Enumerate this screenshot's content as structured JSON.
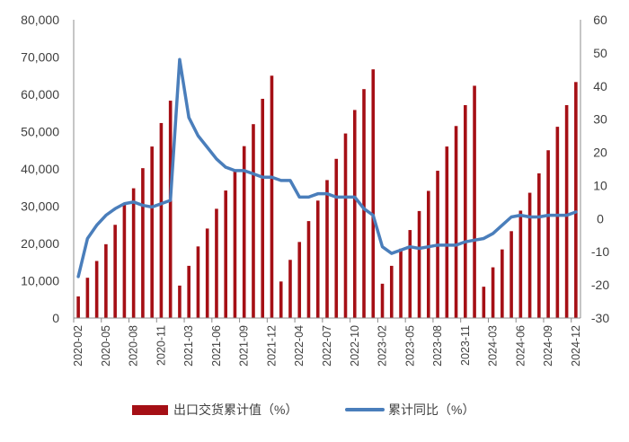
{
  "chart_data": {
    "type": "bar+line",
    "title": "",
    "colors": {
      "bar": "#A50F15",
      "line": "#4A7EBB",
      "axis": "#8C8C8C",
      "text": "#404040"
    },
    "y_left": {
      "ylim": [
        0,
        80000
      ],
      "ticks": [
        "0",
        "10,000",
        "20,000",
        "30,000",
        "40,000",
        "50,000",
        "60,000",
        "70,000",
        "80,000"
      ]
    },
    "y_right": {
      "ylim": [
        -30,
        60
      ],
      "ticks": [
        "-30",
        "-20",
        "-10",
        "0",
        "10",
        "20",
        "30",
        "40",
        "50",
        "60"
      ]
    },
    "x_tick_labels": [
      "2020-02",
      "2020-05",
      "2020-08",
      "2020-11",
      "2021-03",
      "2021-06",
      "2021-09",
      "2021-12",
      "2022-04",
      "2022-07",
      "2022-10",
      "2023-02",
      "2023-05",
      "2023-08",
      "2023-11",
      "2024-03",
      "2024-06",
      "2024-09",
      "2024-12"
    ],
    "x_tick_label_indices": [
      0,
      3,
      6,
      9,
      12,
      15,
      18,
      21,
      24,
      27,
      30,
      33,
      36,
      39,
      42,
      45,
      48,
      51,
      54
    ],
    "categories": [
      "2020-02",
      "2020-03",
      "2020-04",
      "2020-05",
      "2020-06",
      "2020-07",
      "2020-08",
      "2020-09",
      "2020-10",
      "2020-11",
      "2020-12",
      "2021-02",
      "2021-03",
      "2021-04",
      "2021-05",
      "2021-06",
      "2021-07",
      "2021-08",
      "2021-09",
      "2021-10",
      "2021-11",
      "2021-12",
      "2022-02",
      "2022-03",
      "2022-04",
      "2022-05",
      "2022-06",
      "2022-07",
      "2022-08",
      "2022-09",
      "2022-10",
      "2022-11",
      "2022-12",
      "2023-02",
      "2023-03",
      "2023-04",
      "2023-05",
      "2023-06",
      "2023-07",
      "2023-08",
      "2023-09",
      "2023-10",
      "2023-11",
      "2023-12",
      "2024-02",
      "2024-03",
      "2024-04",
      "2024-05",
      "2024-06",
      "2024-07",
      "2024-08",
      "2024-09",
      "2024-10",
      "2024-11",
      "2024-12"
    ],
    "series": [
      {
        "name": "出口交货累计值（%）",
        "type": "bar",
        "axis": "left",
        "values": [
          5800,
          10800,
          15300,
          19800,
          25000,
          30500,
          34800,
          40200,
          46000,
          52300,
          58300,
          8700,
          14000,
          19200,
          24000,
          29300,
          34200,
          39800,
          46100,
          52000,
          58800,
          65000,
          9800,
          15600,
          20400,
          26000,
          31500,
          37000,
          42700,
          49500,
          55800,
          61400,
          66700,
          9200,
          14000,
          18600,
          23600,
          28700,
          34100,
          39500,
          46000,
          51500,
          57100,
          62300,
          8400,
          13600,
          18400,
          23300,
          28800,
          33600,
          38800,
          45000,
          51300,
          57100,
          63300
        ]
      },
      {
        "name": "累计同比（%）",
        "type": "line",
        "axis": "right",
        "values": [
          -17.5,
          -6.0,
          -2.0,
          1.0,
          3.0,
          4.5,
          5.0,
          4.0,
          3.5,
          4.5,
          5.5,
          48.0,
          30.5,
          25.0,
          21.5,
          18.0,
          15.5,
          14.5,
          14.5,
          13.5,
          12.5,
          12.5,
          11.5,
          11.5,
          6.5,
          6.5,
          7.5,
          7.5,
          6.5,
          6.5,
          6.5,
          3.0,
          1.0,
          -8.5,
          -10.5,
          -9.5,
          -8.5,
          -9.0,
          -8.5,
          -8.0,
          -8.0,
          -8.0,
          -7.0,
          -6.5,
          -6.0,
          -4.5,
          -2.0,
          0.5,
          1.0,
          0.5,
          0.5,
          1.0,
          1.0,
          1.0,
          2.0
        ]
      }
    ],
    "legend": {
      "position": "bottom"
    }
  }
}
